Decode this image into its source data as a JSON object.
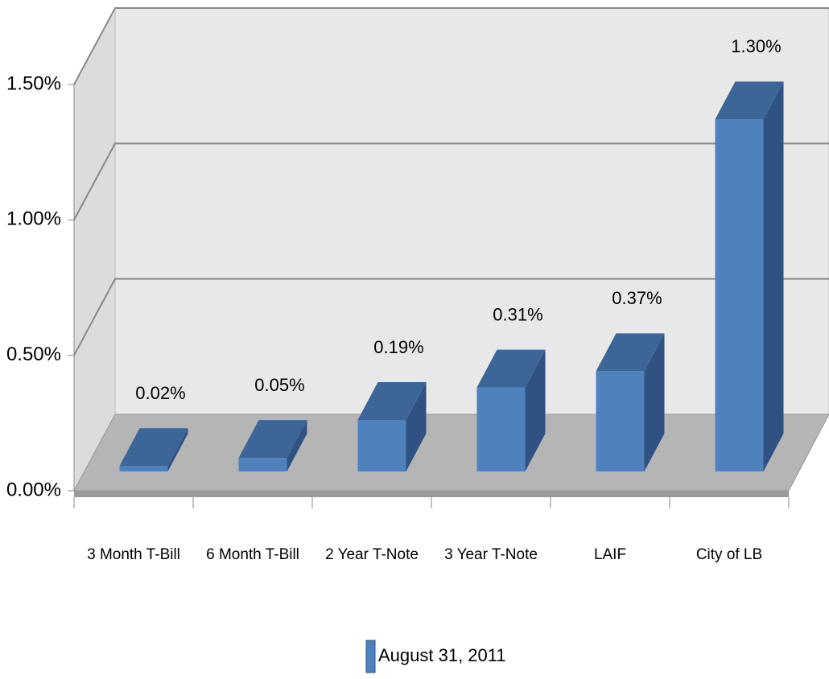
{
  "chart_data": {
    "type": "bar",
    "categories": [
      "3 Month T-Bill",
      "6 Month T-Bill",
      "2 Year T-Note",
      "3 Year T-Note",
      "LAIF",
      "City of LB"
    ],
    "series": [
      {
        "name": "August 31, 2011",
        "color": "#4f81bd",
        "values": [
          0.02,
          0.05,
          0.19,
          0.31,
          0.37,
          1.3
        ],
        "value_labels": [
          "0.02%",
          "0.05%",
          "0.19%",
          "0.31%",
          "0.37%",
          "1.30%"
        ]
      }
    ],
    "ylim": [
      0,
      1.5
    ],
    "yticks": [
      {
        "value": 0,
        "label": "0.00%"
      },
      {
        "value": 0.5,
        "label": "0.50%"
      },
      {
        "value": 1,
        "label": "1.00%"
      },
      {
        "value": 1.5,
        "label": "1.50%"
      }
    ],
    "grid": true,
    "legend": "bottom"
  }
}
